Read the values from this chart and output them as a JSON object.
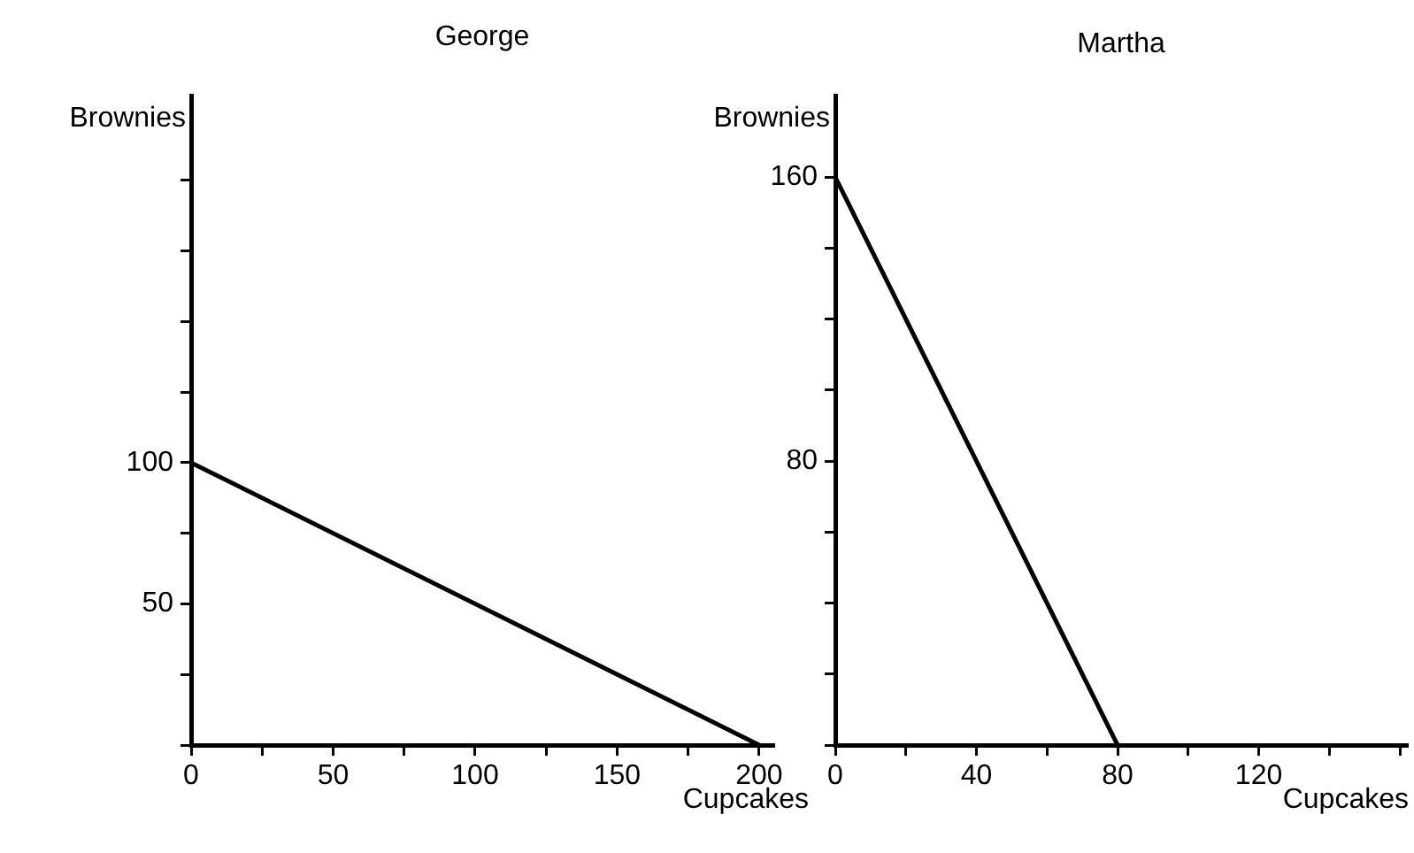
{
  "chart_data": [
    {
      "type": "line",
      "title": "George",
      "xlabel": "Cupcakes",
      "ylabel": "Brownies",
      "series": [
        {
          "color": "#000000",
          "x": [
            0,
            200
          ],
          "values": [
            100,
            0
          ]
        }
      ],
      "xlim": [
        0,
        205
      ],
      "xticks": [
        {
          "value": 0,
          "label": "0"
        },
        {
          "value": 25,
          "label": null
        },
        50,
        {
          "value": 75,
          "label": null
        },
        100,
        {
          "value": 125,
          "label": null
        },
        150,
        {
          "value": 175,
          "label": null
        },
        200
      ],
      "ylim": [
        0,
        230
      ],
      "yticks": [
        {
          "value": 0,
          "label": null
        },
        {
          "value": 25,
          "label": null
        },
        50,
        {
          "value": 75,
          "label": null
        },
        100,
        {
          "value": 125,
          "label": null
        },
        {
          "value": 150,
          "label": null
        },
        {
          "value": 175,
          "label": null
        },
        {
          "value": 200,
          "label": null
        }
      ],
      "grid": false,
      "legend": false,
      "marker": "none",
      "line_style": "solid"
    },
    {
      "type": "line",
      "title": "Martha",
      "xlabel": "Cupcakes",
      "ylabel": "Brownies",
      "series": [
        {
          "color": "#000000",
          "x": [
            0,
            80
          ],
          "values": [
            160,
            0
          ]
        }
      ],
      "xlim": [
        0,
        162
      ],
      "xticks": [
        {
          "value": 0,
          "label": "0"
        },
        {
          "value": 20,
          "label": null
        },
        40,
        {
          "value": 60,
          "label": null
        },
        80,
        {
          "value": 100,
          "label": null
        },
        120,
        {
          "value": 140,
          "label": null
        },
        {
          "value": 160,
          "label": null
        }
      ],
      "ylim": [
        0,
        183
      ],
      "yticks": [
        {
          "value": 0,
          "label": null
        },
        {
          "value": 20,
          "label": null
        },
        {
          "value": 40,
          "label": null
        },
        {
          "value": 60,
          "label": null
        },
        80,
        {
          "value": 100,
          "label": null
        },
        {
          "value": 120,
          "label": null
        },
        {
          "value": 140,
          "label": null
        },
        160
      ],
      "grid": false,
      "legend": false,
      "marker": "none",
      "line_style": "solid"
    }
  ]
}
